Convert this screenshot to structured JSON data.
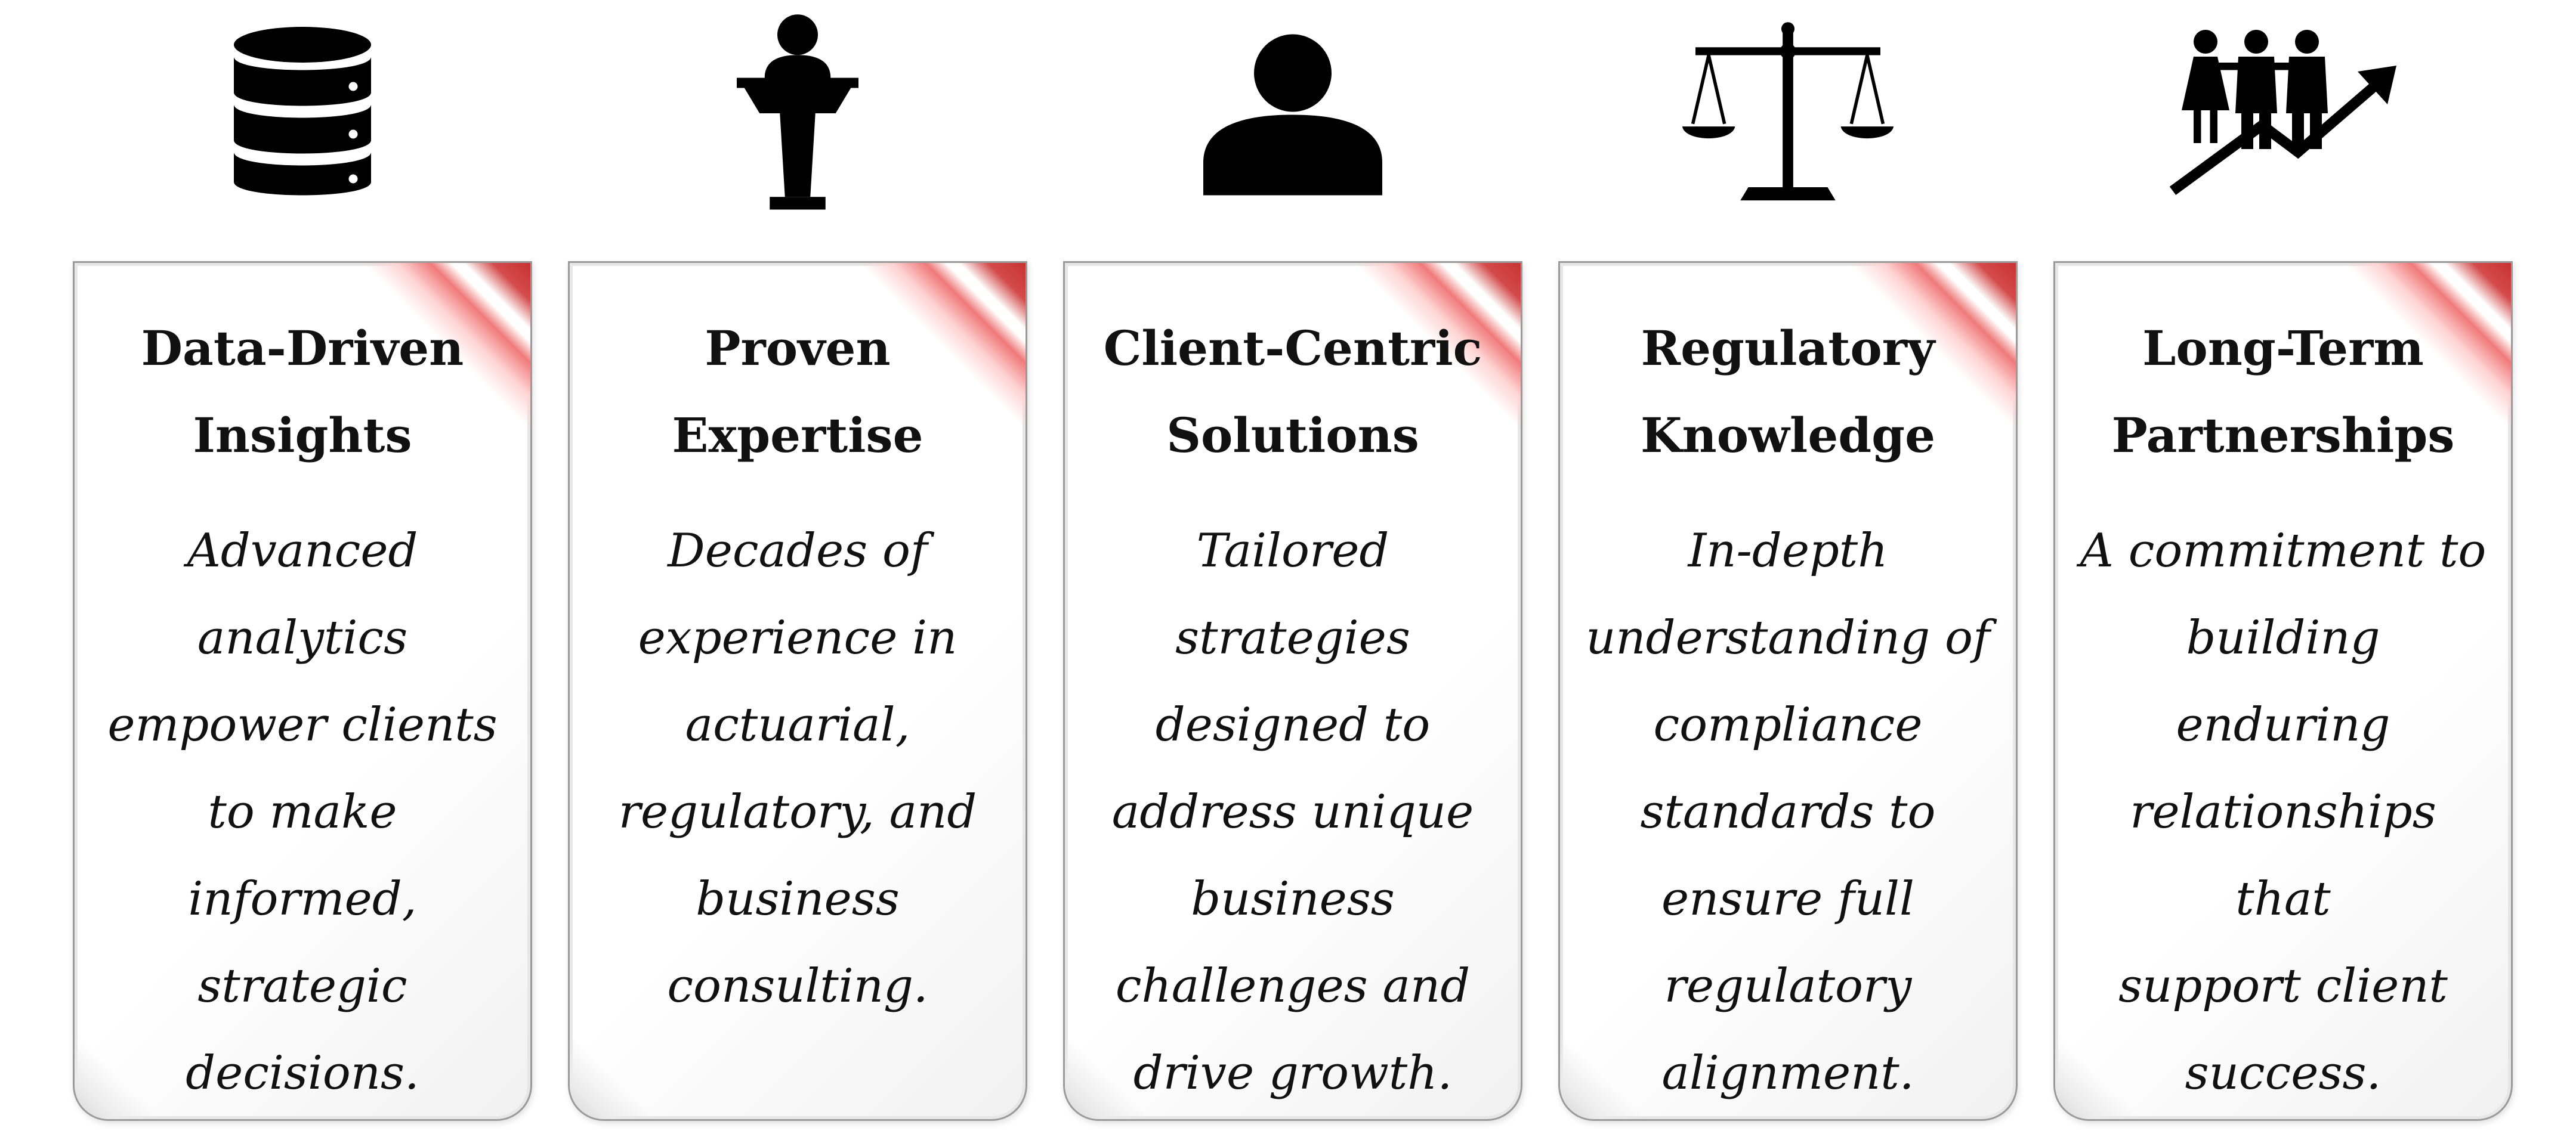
{
  "cards": [
    {
      "icon": "database-icon",
      "title": "Data-Driven\nInsights",
      "body": "Advanced\nanalytics\nempower clients\nto make\ninformed,\nstrategic\ndecisions."
    },
    {
      "icon": "podium-speaker-icon",
      "title": "Proven\nExpertise",
      "body": "Decades of\nexperience in\nactuarial,\nregulatory, and\nbusiness\nconsulting."
    },
    {
      "icon": "person-icon",
      "title": "Client-Centric\nSolutions",
      "body": "Tailored\nstrategies\ndesigned to\naddress unique\nbusiness\nchallenges and\ndrive growth."
    },
    {
      "icon": "scales-of-justice-icon",
      "title": "Regulatory\nKnowledge",
      "body": "In-depth\nunderstanding of\ncompliance\nstandards to\nensure full\nregulatory\nalignment."
    },
    {
      "icon": "people-growth-arrow-icon",
      "title": "Long-Term\nPartnerships",
      "body": "A commitment to\nbuilding\nenduring\nrelationships that\nsupport client\nsuccess."
    }
  ],
  "colors": {
    "icon": "#000000",
    "text": "#111111",
    "accent_red": "#c83232",
    "card_border": "#9a9a9a"
  }
}
